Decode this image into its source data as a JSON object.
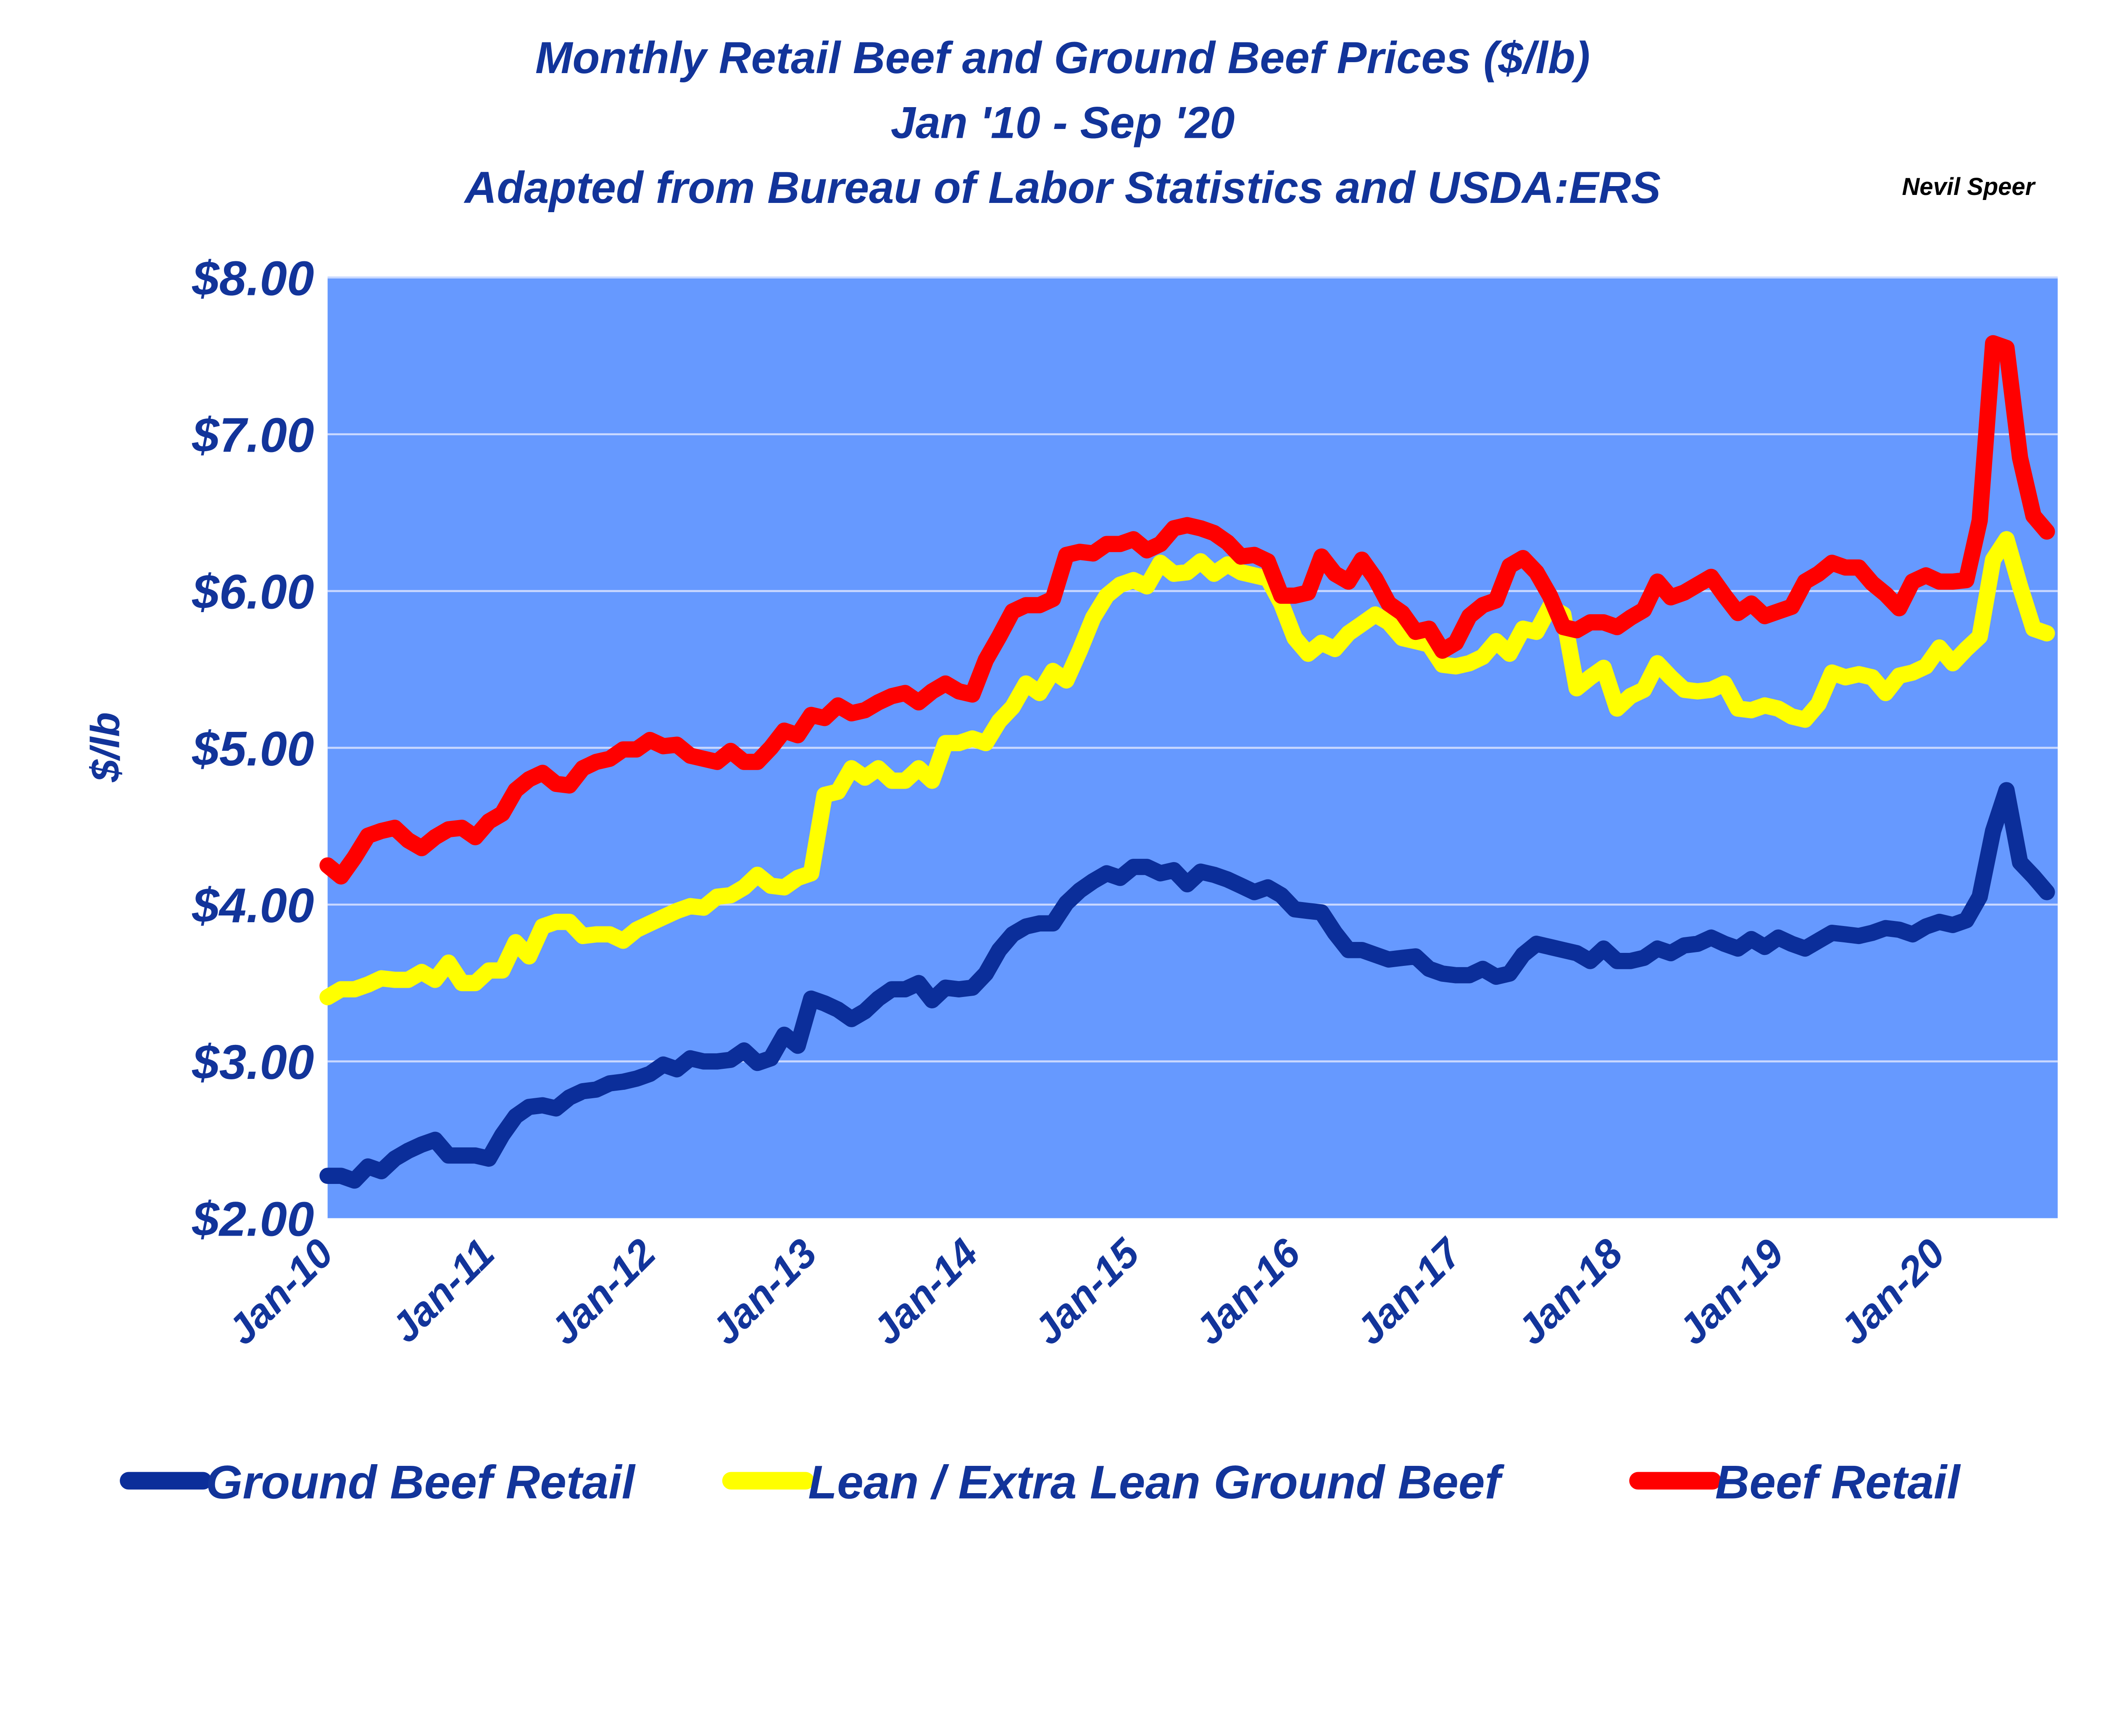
{
  "chart_data": {
    "type": "line",
    "title": "Monthly Retail Beef and Ground Beef Prices ($/lb)",
    "subtitle1": "Jan '10 - Sep '20",
    "subtitle2": "Adapted from Bureau of Labor Statistics and USDA:ERS",
    "author": "Nevil Speer",
    "ylabel": "$/lb",
    "xlabel": "",
    "ylim": [
      2,
      8
    ],
    "y_ticks": [
      "$2.00",
      "$3.00",
      "$4.00",
      "$5.00",
      "$6.00",
      "$7.00",
      "$8.00"
    ],
    "y_tick_values": [
      2,
      3,
      4,
      5,
      6,
      7,
      8
    ],
    "x_ticks": [
      "Jan-10",
      "Jan-11",
      "Jan-12",
      "Jan-13",
      "Jan-14",
      "Jan-15",
      "Jan-16",
      "Jan-17",
      "Jan-18",
      "Jan-19",
      "Jan-20"
    ],
    "x_tick_month_index": [
      0,
      12,
      24,
      36,
      48,
      60,
      72,
      84,
      96,
      108,
      120
    ],
    "x_start": "Jan-10",
    "month_count": 129,
    "grid": true,
    "plot_background": "#6699ff",
    "legend_position": "bottom",
    "series": [
      {
        "name": "Ground Beef Retail",
        "color": "#0b2e9a",
        "values": [
          2.27,
          2.27,
          2.24,
          2.33,
          2.3,
          2.38,
          2.43,
          2.47,
          2.5,
          2.4,
          2.4,
          2.4,
          2.38,
          2.53,
          2.65,
          2.71,
          2.72,
          2.7,
          2.77,
          2.81,
          2.82,
          2.86,
          2.87,
          2.89,
          2.92,
          2.98,
          2.95,
          3.02,
          3.0,
          3.0,
          3.01,
          3.07,
          2.99,
          3.02,
          3.17,
          3.1,
          3.4,
          3.37,
          3.33,
          3.27,
          3.32,
          3.4,
          3.46,
          3.46,
          3.5,
          3.39,
          3.47,
          3.46,
          3.47,
          3.56,
          3.71,
          3.81,
          3.86,
          3.88,
          3.88,
          4.01,
          4.09,
          4.15,
          4.2,
          4.17,
          4.24,
          4.24,
          4.2,
          4.22,
          4.13,
          4.21,
          4.19,
          4.16,
          4.12,
          4.08,
          4.11,
          4.06,
          3.97,
          3.96,
          3.95,
          3.82,
          3.71,
          3.71,
          3.68,
          3.65,
          3.66,
          3.67,
          3.59,
          3.56,
          3.55,
          3.55,
          3.59,
          3.54,
          3.56,
          3.68,
          3.75,
          3.73,
          3.71,
          3.69,
          3.64,
          3.72,
          3.64,
          3.64,
          3.66,
          3.72,
          3.69,
          3.74,
          3.75,
          3.79,
          3.75,
          3.72,
          3.78,
          3.73,
          3.79,
          3.75,
          3.72,
          3.77,
          3.82,
          3.81,
          3.8,
          3.82,
          3.85,
          3.84,
          3.81,
          3.86,
          3.89,
          3.87,
          3.9,
          4.05,
          4.47,
          4.73,
          4.27,
          4.18,
          4.08
        ]
      },
      {
        "name": "Lean / Extra Lean Ground Beef",
        "color": "#ffff00",
        "values": [
          3.41,
          3.46,
          3.46,
          3.49,
          3.53,
          3.52,
          3.52,
          3.57,
          3.52,
          3.63,
          3.5,
          3.5,
          3.58,
          3.58,
          3.76,
          3.67,
          3.86,
          3.89,
          3.89,
          3.8,
          3.81,
          3.81,
          3.77,
          3.84,
          3.88,
          3.92,
          3.96,
          3.99,
          3.98,
          4.05,
          4.06,
          4.11,
          4.19,
          4.12,
          4.11,
          4.17,
          4.2,
          4.7,
          4.72,
          4.87,
          4.81,
          4.87,
          4.79,
          4.79,
          4.87,
          4.79,
          5.03,
          5.03,
          5.06,
          5.03,
          5.17,
          5.26,
          5.41,
          5.35,
          5.49,
          5.43,
          5.62,
          5.83,
          5.97,
          6.04,
          6.07,
          6.03,
          6.18,
          6.11,
          6.12,
          6.19,
          6.11,
          6.17,
          6.12,
          6.1,
          6.08,
          5.92,
          5.7,
          5.6,
          5.67,
          5.63,
          5.73,
          5.79,
          5.85,
          5.8,
          5.7,
          5.68,
          5.66,
          5.53,
          5.52,
          5.54,
          5.58,
          5.68,
          5.6,
          5.76,
          5.74,
          5.9,
          5.85,
          5.38,
          5.45,
          5.51,
          5.25,
          5.33,
          5.37,
          5.54,
          5.45,
          5.37,
          5.36,
          5.37,
          5.41,
          5.25,
          5.24,
          5.27,
          5.25,
          5.2,
          5.18,
          5.28,
          5.48,
          5.45,
          5.47,
          5.45,
          5.35,
          5.46,
          5.48,
          5.52,
          5.64,
          5.54,
          5.63,
          5.71,
          6.2,
          6.33,
          6.03,
          5.76,
          5.73
        ]
      },
      {
        "name": "Beef Retail",
        "color": "#ff0000",
        "values": [
          4.25,
          4.18,
          4.3,
          4.44,
          4.47,
          4.49,
          4.41,
          4.36,
          4.43,
          4.48,
          4.49,
          4.43,
          4.53,
          4.58,
          4.73,
          4.8,
          4.84,
          4.77,
          4.76,
          4.87,
          4.91,
          4.93,
          4.99,
          4.99,
          5.05,
          5.01,
          5.02,
          4.95,
          4.93,
          4.91,
          4.98,
          4.91,
          4.91,
          5.0,
          5.11,
          5.08,
          5.21,
          5.19,
          5.27,
          5.22,
          5.24,
          5.29,
          5.33,
          5.35,
          5.29,
          5.36,
          5.41,
          5.36,
          5.34,
          5.56,
          5.71,
          5.87,
          5.91,
          5.91,
          5.95,
          6.23,
          6.25,
          6.24,
          6.3,
          6.3,
          6.33,
          6.26,
          6.3,
          6.4,
          6.42,
          6.4,
          6.37,
          6.31,
          6.22,
          6.23,
          6.19,
          5.97,
          5.97,
          5.99,
          6.22,
          6.11,
          6.06,
          6.2,
          6.08,
          5.92,
          5.86,
          5.74,
          5.76,
          5.62,
          5.67,
          5.84,
          5.91,
          5.94,
          6.16,
          6.21,
          6.12,
          5.97,
          5.77,
          5.75,
          5.8,
          5.8,
          5.77,
          5.83,
          5.88,
          6.06,
          5.96,
          5.99,
          6.04,
          6.09,
          5.97,
          5.86,
          5.92,
          5.84,
          5.87,
          5.9,
          6.06,
          6.11,
          6.18,
          6.15,
          6.15,
          6.05,
          5.98,
          5.89,
          6.06,
          6.1,
          6.06,
          6.06,
          6.07,
          6.45,
          7.58,
          7.55,
          6.85,
          6.48,
          6.38
        ]
      }
    ]
  }
}
